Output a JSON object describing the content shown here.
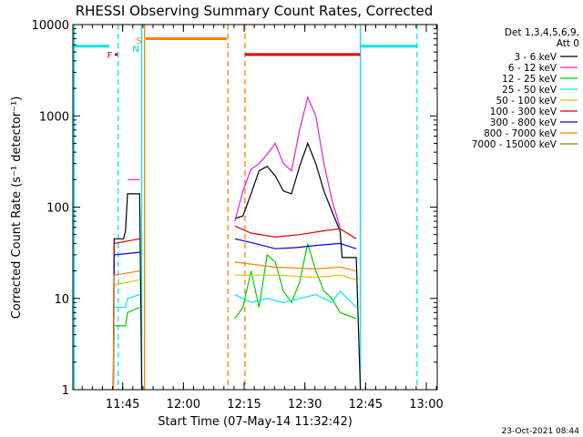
{
  "chart_data": {
    "type": "line",
    "title": "RHESSI Observing Summary Count Rates, Corrected",
    "xlabel": "Start Time (07-May-14 11:32:42)",
    "ylabel": "Corrected Count Rate (s⁻¹ detector⁻¹)",
    "x_unit": "minutes after 11:32:42",
    "xlim": [
      0,
      90
    ],
    "ylim": [
      1,
      10000
    ],
    "yscale": "log",
    "x_ticks": [
      {
        "t": 12.3,
        "label": "11:45"
      },
      {
        "t": 27.3,
        "label": "12:00"
      },
      {
        "t": 42.3,
        "label": "12:15"
      },
      {
        "t": 57.3,
        "label": "12:30"
      },
      {
        "t": 72.3,
        "label": "12:45"
      },
      {
        "t": 87.3,
        "label": "13:00"
      }
    ],
    "y_ticks": [
      {
        "v": 1,
        "label": "1"
      },
      {
        "v": 10,
        "label": "10"
      },
      {
        "v": 100,
        "label": "100"
      },
      {
        "v": 1000,
        "label": "1000"
      },
      {
        "v": 10000,
        "label": "10000"
      }
    ],
    "legend": {
      "position": "right",
      "header": [
        "Det 1,3,4,5,6,9,",
        "Att 0"
      ]
    },
    "series": [
      {
        "name": "3 - 6 keV",
        "color": "#000000",
        "segments": [
          [
            [
              10,
              1
            ],
            [
              10.2,
              45
            ],
            [
              12.5,
              45
            ],
            [
              13,
              55
            ],
            [
              13.5,
              140
            ],
            [
              16.5,
              140
            ],
            [
              17,
              1
            ]
          ],
          [
            [
              40,
              75
            ],
            [
              42,
              80
            ],
            [
              44,
              140
            ],
            [
              46,
              250
            ],
            [
              48,
              280
            ],
            [
              50,
              220
            ],
            [
              52,
              150
            ],
            [
              54,
              140
            ],
            [
              56,
              280
            ],
            [
              58,
              500
            ],
            [
              60,
              300
            ],
            [
              62,
              150
            ],
            [
              64,
              90
            ],
            [
              66,
              55
            ],
            [
              66.5,
              28
            ],
            [
              70,
              28
            ],
            [
              71,
              1
            ]
          ]
        ]
      },
      {
        "name": "6 - 12 keV",
        "color": "#e020e0",
        "segments": [
          [
            [
              13.5,
              200
            ],
            [
              16.5,
              200
            ]
          ],
          [
            [
              40,
              70
            ],
            [
              42,
              150
            ],
            [
              44,
              260
            ],
            [
              46,
              300
            ],
            [
              48,
              380
            ],
            [
              50,
              500
            ],
            [
              52,
              300
            ],
            [
              54,
              250
            ],
            [
              56,
              700
            ],
            [
              58,
              1600
            ],
            [
              60,
              1000
            ],
            [
              62,
              300
            ],
            [
              64,
              120
            ],
            [
              66,
              60
            ]
          ]
        ]
      },
      {
        "name": "12 - 25 keV",
        "color": "#00cc00",
        "segments": [
          [
            [
              10,
              1
            ],
            [
              10.2,
              5
            ],
            [
              13,
              5
            ],
            [
              13.5,
              7
            ],
            [
              16.5,
              8
            ]
          ],
          [
            [
              40,
              6
            ],
            [
              42,
              8
            ],
            [
              44,
              20
            ],
            [
              46,
              8
            ],
            [
              48,
              30
            ],
            [
              50,
              25
            ],
            [
              52,
              12
            ],
            [
              54,
              9
            ],
            [
              56,
              15
            ],
            [
              58,
              40
            ],
            [
              60,
              20
            ],
            [
              62,
              12
            ],
            [
              64,
              10
            ],
            [
              66,
              7
            ],
            [
              70,
              6
            ]
          ]
        ]
      },
      {
        "name": "25 - 50 keV",
        "color": "#00e8e8",
        "segments": [
          [
            [
              10,
              1
            ],
            [
              10.2,
              8
            ],
            [
              13,
              8
            ],
            [
              13.5,
              10
            ],
            [
              16.5,
              11
            ]
          ],
          [
            [
              40,
              11
            ],
            [
              44,
              9
            ],
            [
              48,
              10
            ],
            [
              52,
              9
            ],
            [
              56,
              10
            ],
            [
              60,
              11
            ],
            [
              64,
              9
            ],
            [
              66,
              12
            ],
            [
              70,
              8
            ]
          ]
        ]
      },
      {
        "name": "50 - 100 keV",
        "color": "#e0c000",
        "segments": [
          [
            [
              10,
              1
            ],
            [
              10.2,
              14
            ],
            [
              16.5,
              16
            ]
          ],
          [
            [
              40,
              18
            ],
            [
              50,
              18
            ],
            [
              60,
              17
            ],
            [
              66,
              18
            ],
            [
              70,
              16
            ]
          ]
        ]
      },
      {
        "name": "100 - 300 keV",
        "color": "#e00000",
        "segments": [
          [
            [
              10,
              1
            ],
            [
              10.2,
              40
            ],
            [
              16.5,
              45
            ]
          ],
          [
            [
              40,
              62
            ],
            [
              44,
              52
            ],
            [
              50,
              47
            ],
            [
              56,
              50
            ],
            [
              62,
              55
            ],
            [
              66,
              58
            ],
            [
              70,
              45
            ]
          ]
        ]
      },
      {
        "name": "300 - 800 keV",
        "color": "#0000e0",
        "segments": [
          [
            [
              10,
              1
            ],
            [
              10.2,
              30
            ],
            [
              16.5,
              32
            ]
          ],
          [
            [
              40,
              45
            ],
            [
              45,
              40
            ],
            [
              50,
              35
            ],
            [
              55,
              36
            ],
            [
              60,
              38
            ],
            [
              66,
              40
            ],
            [
              70,
              35
            ]
          ]
        ]
      },
      {
        "name": "800 - 7000 keV",
        "color": "#ff8000",
        "segments": [
          [
            [
              10,
              1
            ],
            [
              10.2,
              18
            ],
            [
              16.5,
              20
            ]
          ],
          [
            [
              40,
              25
            ],
            [
              50,
              22
            ],
            [
              60,
              21
            ],
            [
              66,
              22
            ],
            [
              70,
              20
            ]
          ]
        ]
      },
      {
        "name": "7000 - 15000 keV",
        "color": "#808000",
        "segments": []
      }
    ],
    "intervals": [
      {
        "label": "",
        "color": "#00e8e8",
        "y": 5800,
        "x": [
          0,
          9
        ]
      },
      {
        "label": "",
        "color": "#00e8e8",
        "y": 5800,
        "x": [
          71,
          85
        ]
      },
      {
        "label": "",
        "color": "#ff8000",
        "y": 7000,
        "x": [
          18,
          38
        ]
      },
      {
        "label": "",
        "color": "#e00000",
        "y": 4700,
        "x": [
          42.5,
          71
        ]
      }
    ],
    "vlines": [
      {
        "t": 0.3,
        "color": "#00e8e8",
        "style": "solid"
      },
      {
        "t": 11.2,
        "color": "#00e8e8",
        "style": "dashed"
      },
      {
        "t": 17.0,
        "color": "#00e8e8",
        "style": "solid"
      },
      {
        "t": 17.7,
        "color": "#ff8000",
        "style": "solid"
      },
      {
        "t": 38.3,
        "color": "#ff8000",
        "style": "dashed"
      },
      {
        "t": 42.5,
        "color": "#ff8000",
        "style": "dashed"
      },
      {
        "t": 71.0,
        "color": "#00e8e8",
        "style": "solid"
      },
      {
        "t": 85.0,
        "color": "#00e8e8",
        "style": "dashed"
      }
    ],
    "flags": [
      {
        "text": "F",
        "color": "#cc0000",
        "t": 10.7,
        "v": 4700,
        "marker": true
      },
      {
        "text": "N",
        "color": "#00c8c8",
        "t": 14.7,
        "v": 5500,
        "marker": false
      },
      {
        "text": "S",
        "color": "#ff8000",
        "t": 15.6,
        "v": 6800,
        "marker": false
      }
    ]
  },
  "footer_timestamp": "23-Oct-2021 08:44"
}
